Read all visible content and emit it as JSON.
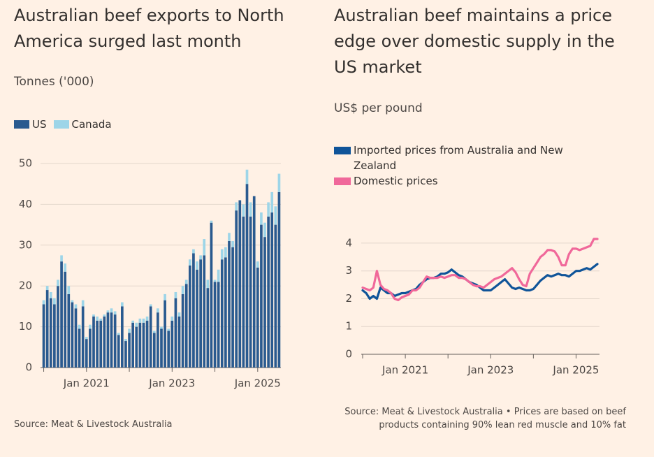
{
  "chart_data": [
    {
      "type": "bar",
      "title": "Australian beef exports to North America surged last month",
      "subtitle": "Tonnes ('000)",
      "source": "Source: Meat & Livestock Australia",
      "categories": [
        null,
        null,
        null,
        null,
        null,
        null,
        null,
        null,
        null,
        null,
        null,
        null,
        "Jan 2021",
        null,
        null,
        null,
        null,
        null,
        null,
        null,
        null,
        null,
        null,
        null,
        null,
        null,
        null,
        null,
        null,
        null,
        null,
        null,
        null,
        null,
        null,
        null,
        "Jan 2023",
        null,
        null,
        null,
        null,
        null,
        null,
        null,
        null,
        null,
        null,
        null,
        null,
        null,
        null,
        null,
        null,
        null,
        null,
        null,
        null,
        null,
        null,
        null,
        "Jan 2025",
        null,
        null,
        null,
        null,
        null,
        null
      ],
      "series": [
        {
          "name": "US",
          "color": "#2a5a8f",
          "values": [
            15.5,
            19,
            17,
            15.5,
            20,
            26,
            23.5,
            18,
            16,
            14.5,
            9.5,
            15,
            7,
            9.5,
            12.5,
            11.5,
            11.5,
            12.5,
            13.5,
            13.5,
            13,
            8,
            15,
            6.5,
            8.5,
            11,
            10,
            11,
            11,
            11.5,
            15,
            8.5,
            13.5,
            9.5,
            16.5,
            9,
            11.5,
            17,
            12.5,
            18,
            20.5,
            25,
            28,
            24,
            26.5,
            27.5,
            19.5,
            35.5,
            21,
            21,
            26.5,
            27,
            31,
            29.5,
            38.5,
            41,
            37,
            45,
            37,
            42,
            24.5,
            35,
            32,
            37,
            38,
            35,
            43
          ]
        },
        {
          "name": "Canada",
          "color": "#9dd5e8",
          "values": [
            1,
            1,
            1.5,
            1.5,
            1.5,
            1.5,
            2,
            2,
            0.5,
            1,
            1,
            1.5,
            0.5,
            1,
            0.5,
            1,
            0.5,
            0.5,
            0.5,
            1,
            0.8,
            0.5,
            1,
            0.5,
            1,
            0.5,
            1,
            1,
            1,
            1,
            0.5,
            0.5,
            1,
            0.5,
            1.5,
            0.5,
            1,
            1.5,
            1,
            2,
            1,
            1.5,
            1,
            2,
            1,
            4,
            2,
            0.5,
            0.5,
            3,
            2.5,
            2.5,
            2,
            1.5,
            2,
            0,
            3,
            3.5,
            3.5,
            0,
            1.5,
            3,
            3.5,
            3.5,
            5,
            4.5,
            4.5
          ]
        }
      ],
      "ylim": [
        0,
        50
      ],
      "yticks": [
        0,
        10,
        20,
        30,
        40,
        50
      ],
      "grid": true
    },
    {
      "type": "line",
      "title": "Australian beef maintains a price edge over domestic supply in the US market",
      "subtitle": "US$ per pound",
      "source": "Source: Meat & Livestock Australia • Prices are based on beef products containing 90% lean red muscle and 10% fat",
      "categories": [
        null,
        null,
        null,
        null,
        null,
        null,
        null,
        null,
        null,
        null,
        null,
        null,
        "Jan 2021",
        null,
        null,
        null,
        null,
        null,
        null,
        null,
        null,
        null,
        null,
        null,
        null,
        null,
        null,
        null,
        null,
        null,
        null,
        null,
        null,
        null,
        null,
        null,
        "Jan 2023",
        null,
        null,
        null,
        null,
        null,
        null,
        null,
        null,
        null,
        null,
        null,
        null,
        null,
        null,
        null,
        null,
        null,
        null,
        null,
        null,
        null,
        null,
        null,
        "Jan 2025",
        null,
        null,
        null,
        null,
        null,
        null
      ],
      "series": [
        {
          "name": "Imported prices from Australia and New Zealand",
          "color": "#0f5499",
          "values": [
            2.3,
            2.2,
            2.0,
            2.1,
            2.0,
            2.4,
            2.3,
            2.2,
            2.2,
            2.1,
            2.15,
            2.2,
            2.2,
            2.25,
            2.3,
            2.35,
            2.5,
            2.6,
            2.7,
            2.75,
            2.75,
            2.8,
            2.9,
            2.9,
            2.95,
            3.05,
            2.95,
            2.85,
            2.8,
            2.7,
            2.6,
            2.55,
            2.5,
            2.4,
            2.3,
            2.3,
            2.3,
            2.4,
            2.5,
            2.6,
            2.7,
            2.55,
            2.4,
            2.35,
            2.4,
            2.35,
            2.3,
            2.3,
            2.35,
            2.5,
            2.65,
            2.75,
            2.85,
            2.8,
            2.85,
            2.9,
            2.85,
            2.85,
            2.8,
            2.9,
            3.0,
            3.0,
            3.05,
            3.1,
            3.05,
            3.15,
            3.25
          ]
        },
        {
          "name": "Domestic prices",
          "color": "#f0689a",
          "values": [
            2.4,
            2.35,
            2.3,
            2.4,
            3.0,
            2.5,
            2.35,
            2.3,
            2.2,
            2.0,
            1.95,
            2.05,
            2.1,
            2.15,
            2.3,
            2.3,
            2.4,
            2.6,
            2.8,
            2.75,
            2.75,
            2.75,
            2.8,
            2.75,
            2.8,
            2.85,
            2.85,
            2.75,
            2.75,
            2.7,
            2.6,
            2.5,
            2.45,
            2.45,
            2.4,
            2.5,
            2.6,
            2.7,
            2.75,
            2.8,
            2.9,
            3.0,
            3.1,
            2.95,
            2.7,
            2.5,
            2.45,
            2.9,
            3.1,
            3.3,
            3.5,
            3.6,
            3.75,
            3.75,
            3.7,
            3.5,
            3.2,
            3.2,
            3.6,
            3.8,
            3.8,
            3.75,
            3.8,
            3.85,
            3.9,
            4.15,
            4.15
          ]
        }
      ],
      "ylim": [
        0,
        4.3
      ],
      "yticks": [
        0,
        1,
        2,
        3,
        4
      ],
      "grid": true
    }
  ]
}
